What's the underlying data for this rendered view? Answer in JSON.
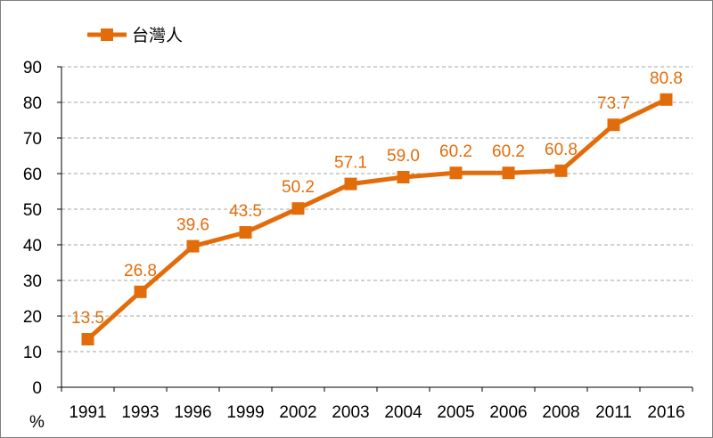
{
  "chart_data": {
    "type": "line",
    "title": "",
    "xlabel": "",
    "ylabel": "%",
    "categories": [
      "1991",
      "1993",
      "1996",
      "1999",
      "2002",
      "2003",
      "2004",
      "2005",
      "2006",
      "2008",
      "2011",
      "2016"
    ],
    "series": [
      {
        "name": "台灣人",
        "values": [
          13.5,
          26.8,
          39.6,
          43.5,
          50.2,
          57.1,
          59.0,
          60.2,
          60.2,
          60.8,
          73.7,
          80.8
        ],
        "labels": [
          "13.5",
          "26.8",
          "39.6",
          "43.5",
          "50.2",
          "57.1",
          "59.0",
          "60.2",
          "60.2",
          "60.8",
          "73.7",
          "80.8"
        ],
        "color": "#e36c0a",
        "marker": "square"
      }
    ],
    "ylim": [
      0,
      90
    ],
    "yticks": [
      "0",
      "10",
      "20",
      "30",
      "40",
      "50",
      "60",
      "70",
      "80",
      "90"
    ],
    "grid": "horizontal-dashed",
    "legend": "top-left",
    "axis_color": "#000000",
    "grid_color": "#a6a6a6"
  }
}
